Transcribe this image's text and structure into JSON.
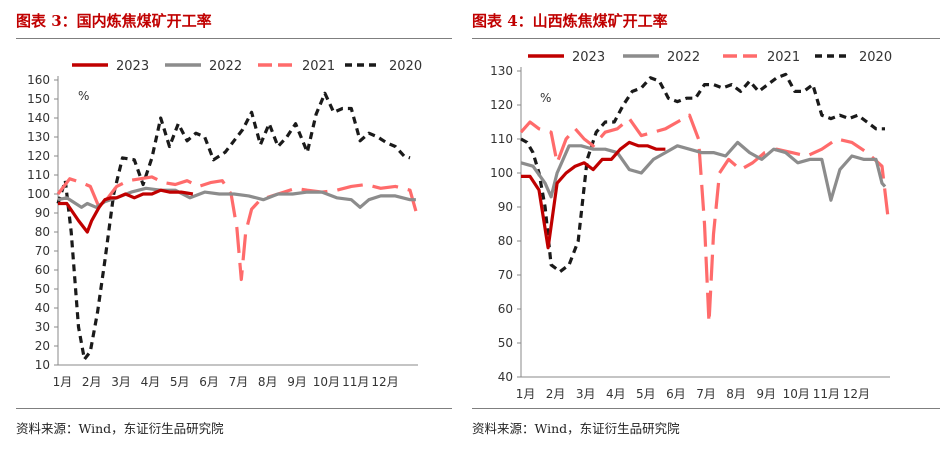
{
  "charts": [
    {
      "title": "图表 3：国内炼焦煤矿开工率",
      "source": "资料来源：Wind，东证衍生品研究院"
    },
    {
      "title": "图表 4：山西炼焦煤矿开工率",
      "source": "资料来源：Wind，东证衍生品研究院"
    }
  ],
  "chart_data": [
    {
      "type": "line",
      "title": "图表 3：国内炼焦煤矿开工率",
      "unit_label": "%",
      "xlabel": "",
      "ylabel": "",
      "ylim": [
        10,
        160
      ],
      "yticks": [
        10,
        20,
        30,
        40,
        50,
        60,
        70,
        80,
        90,
        100,
        110,
        120,
        130,
        140,
        150,
        160
      ],
      "xlim": [
        0,
        12
      ],
      "xtick_labels": [
        "1月",
        "2月",
        "3月",
        "4月",
        "5月",
        "6月",
        "7月",
        "8月",
        "9月",
        "10月",
        "11月",
        "12月"
      ],
      "legend_position": "top",
      "series": [
        {
          "name": "2023",
          "color": "#c00000",
          "dash": "solid",
          "x": [
            0,
            0.3,
            0.7,
            1.0,
            1.15,
            1.4,
            1.6,
            1.8,
            2.0,
            2.3,
            2.6,
            2.9,
            3.2,
            3.5,
            3.8,
            4.2,
            4.6
          ],
          "y": [
            95,
            95,
            86,
            80,
            86,
            93,
            97,
            98,
            98,
            100,
            98,
            100,
            100,
            102,
            101,
            101,
            100
          ]
        },
        {
          "name": "2022",
          "color": "#8c8c8c",
          "dash": "solid",
          "x": [
            0,
            0.3,
            0.5,
            0.8,
            1.0,
            1.3,
            1.6,
            2.0,
            2.5,
            3.0,
            3.5,
            4.0,
            4.5,
            5.0,
            5.5,
            6.0,
            6.5,
            7.0,
            7.5,
            8.0,
            8.5,
            9.0,
            9.5,
            10.0,
            10.3,
            10.6,
            11.0,
            11.5,
            12.0,
            12.2
          ],
          "y": [
            97,
            98,
            96,
            93,
            95,
            93,
            96,
            98,
            101,
            103,
            102,
            102,
            98,
            101,
            100,
            100,
            99,
            97,
            100,
            100,
            101,
            101,
            98,
            97,
            93,
            97,
            99,
            99,
            97,
            97
          ]
        },
        {
          "name": "2021",
          "color": "#ff6b6b",
          "dash": "longdash",
          "x": [
            0,
            0.4,
            0.8,
            1.1,
            1.4,
            1.7,
            2.0,
            2.4,
            2.8,
            3.2,
            3.6,
            4.0,
            4.4,
            4.8,
            5.2,
            5.6,
            5.9,
            6.1,
            6.25,
            6.4,
            6.6,
            6.9,
            7.3,
            7.7,
            8.1,
            8.5,
            9.0,
            9.5,
            10.0,
            10.5,
            11.0,
            11.5,
            12.0,
            12.2
          ],
          "y": [
            100,
            108,
            106,
            104,
            93,
            98,
            104,
            107,
            108,
            109,
            106,
            105,
            107,
            104,
            106,
            107,
            100,
            82,
            55,
            80,
            92,
            97,
            99,
            101,
            103,
            102,
            101,
            102,
            104,
            105,
            103,
            104,
            102,
            91
          ]
        },
        {
          "name": "2020",
          "color": "#1a1a1a",
          "dash": "dash",
          "x": [
            0,
            0.25,
            0.45,
            0.7,
            0.9,
            1.1,
            1.35,
            1.6,
            1.9,
            2.2,
            2.6,
            2.9,
            3.2,
            3.5,
            3.8,
            4.1,
            4.4,
            4.7,
            5.0,
            5.3,
            5.7,
            6.0,
            6.3,
            6.6,
            6.9,
            7.2,
            7.5,
            7.8,
            8.1,
            8.5,
            8.8,
            9.1,
            9.4,
            9.7,
            10.0,
            10.3,
            10.6,
            10.9,
            11.2,
            11.5,
            11.8,
            12.0
          ],
          "y": [
            95,
            107,
            80,
            30,
            13,
            17,
            38,
            65,
            100,
            119,
            118,
            105,
            119,
            140,
            125,
            137,
            128,
            132,
            130,
            118,
            122,
            128,
            134,
            143,
            126,
            137,
            125,
            130,
            137,
            122,
            142,
            153,
            143,
            145,
            145,
            128,
            132,
            130,
            127,
            125,
            120,
            119
          ]
        }
      ]
    },
    {
      "type": "line",
      "title": "图表 4：山西炼焦煤矿开工率",
      "unit_label": "%",
      "xlabel": "",
      "ylabel": "",
      "ylim": [
        40,
        130
      ],
      "yticks": [
        40,
        50,
        60,
        70,
        80,
        90,
        100,
        110,
        120,
        130
      ],
      "xlim": [
        0,
        12
      ],
      "xtick_labels": [
        "1月",
        "2月",
        "3月",
        "4月",
        "5月",
        "6月",
        "7月",
        "8月",
        "9月",
        "10月",
        "11月",
        "12月"
      ],
      "legend_position": "top",
      "series": [
        {
          "name": "2023",
          "color": "#c00000",
          "dash": "solid",
          "x": [
            0,
            0.3,
            0.6,
            0.9,
            1.2,
            1.5,
            1.8,
            2.1,
            2.4,
            2.7,
            3.0,
            3.3,
            3.6,
            3.9,
            4.2,
            4.5,
            4.8
          ],
          "y": [
            99,
            99,
            95,
            78,
            97,
            100,
            102,
            103,
            101,
            104,
            104,
            107,
            109,
            108,
            108,
            107,
            107
          ]
        },
        {
          "name": "2022",
          "color": "#8c8c8c",
          "dash": "solid",
          "x": [
            0,
            0.4,
            0.8,
            1.0,
            1.2,
            1.6,
            2.0,
            2.4,
            2.8,
            3.2,
            3.6,
            4.0,
            4.4,
            4.8,
            5.2,
            5.6,
            6.0,
            6.4,
            6.8,
            7.2,
            7.6,
            8.0,
            8.4,
            8.8,
            9.2,
            9.6,
            10.0,
            10.3,
            10.6,
            11.0,
            11.4,
            11.8,
            12.0,
            12.1
          ],
          "y": [
            103,
            102,
            97,
            93,
            100,
            108,
            108,
            107,
            107,
            106,
            101,
            100,
            104,
            106,
            108,
            107,
            106,
            106,
            105,
            109,
            106,
            104,
            107,
            106,
            103,
            104,
            104,
            92,
            101,
            105,
            104,
            104,
            97,
            96
          ]
        },
        {
          "name": "2021",
          "color": "#ff6b6b",
          "dash": "longdash",
          "x": [
            0,
            0.3,
            0.6,
            1.0,
            1.2,
            1.5,
            1.8,
            2.1,
            2.4,
            2.8,
            3.2,
            3.6,
            4.0,
            4.4,
            4.8,
            5.2,
            5.6,
            5.9,
            6.1,
            6.25,
            6.4,
            6.6,
            6.9,
            7.3,
            7.7,
            8.1,
            8.5,
            9.0,
            9.5,
            10.0,
            10.5,
            11.0,
            11.5,
            12.0,
            12.2
          ],
          "y": [
            112,
            115,
            113,
            112,
            103,
            110,
            113,
            110,
            108,
            112,
            113,
            116,
            111,
            112,
            113,
            115,
            117,
            110,
            85,
            56,
            82,
            100,
            104,
            101,
            103,
            106,
            107,
            106,
            105,
            107,
            110,
            109,
            106,
            102,
            87
          ]
        },
        {
          "name": "2020",
          "color": "#1a1a1a",
          "dash": "dash",
          "x": [
            0,
            0.2,
            0.4,
            0.6,
            0.8,
            1.0,
            1.3,
            1.6,
            1.9,
            2.2,
            2.5,
            2.8,
            3.1,
            3.4,
            3.7,
            4.0,
            4.3,
            4.6,
            4.9,
            5.2,
            5.5,
            5.8,
            6.1,
            6.4,
            6.7,
            7.0,
            7.3,
            7.6,
            7.9,
            8.2,
            8.5,
            8.8,
            9.1,
            9.4,
            9.7,
            10.0,
            10.3,
            10.6,
            10.9,
            11.2,
            11.5,
            11.8,
            12.1
          ],
          "y": [
            110,
            109,
            106,
            100,
            90,
            73,
            71,
            73,
            80,
            104,
            112,
            115,
            115,
            120,
            124,
            125,
            128,
            127,
            122,
            121,
            122,
            122,
            126,
            126,
            125,
            126,
            124,
            127,
            124,
            126,
            128,
            129,
            124,
            124,
            126,
            117,
            116,
            117,
            116,
            117,
            115,
            113,
            113
          ]
        }
      ]
    }
  ]
}
